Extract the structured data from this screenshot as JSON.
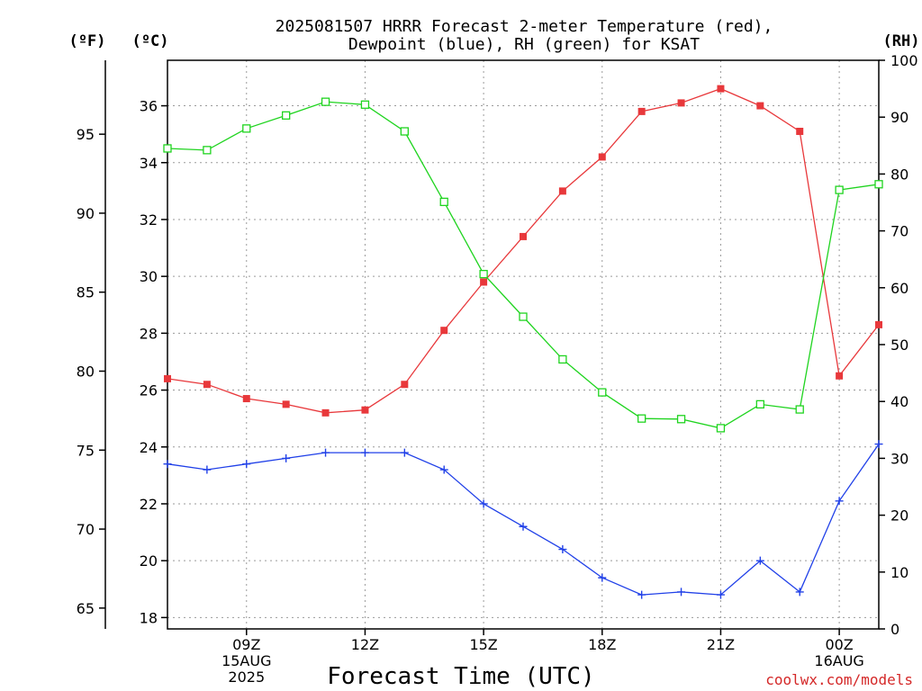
{
  "chart_data": {
    "type": "line",
    "title_line1": "2025081507 HRRR Forecast 2-meter Temperature (red),",
    "title_line2": "Dewpoint (blue), RH (green) for KSAT",
    "xlabel": "Forecast Time (UTC)",
    "credit": "coolwx.com/models",
    "axes": {
      "fahrenheit": {
        "unit_label": "(ºF)",
        "ticks": [
          65,
          70,
          75,
          80,
          85,
          90,
          95
        ]
      },
      "celsius": {
        "unit_label": "(ºC)",
        "range": [
          17.6,
          37.6
        ],
        "ticks": [
          18,
          20,
          22,
          24,
          26,
          28,
          30,
          32,
          34,
          36
        ]
      },
      "rh": {
        "unit_label": "(RH)",
        "range": [
          0,
          100
        ],
        "ticks": [
          0,
          10,
          20,
          30,
          40,
          50,
          60,
          70,
          80,
          90,
          100
        ]
      }
    },
    "x_hours": [
      7,
      8,
      9,
      10,
      11,
      12,
      13,
      14,
      15,
      16,
      17,
      18,
      19,
      20,
      21,
      22,
      23,
      24,
      25
    ],
    "x_range": [
      7,
      25
    ],
    "x_ticks": [
      {
        "hour": 9,
        "lines": [
          "09Z",
          "15AUG",
          "2025"
        ]
      },
      {
        "hour": 12,
        "lines": [
          "12Z"
        ]
      },
      {
        "hour": 15,
        "lines": [
          "15Z"
        ]
      },
      {
        "hour": 18,
        "lines": [
          "18Z"
        ]
      },
      {
        "hour": 21,
        "lines": [
          "21Z"
        ]
      },
      {
        "hour": 24,
        "lines": [
          "00Z",
          "16AUG"
        ]
      }
    ],
    "grid": true,
    "series": [
      {
        "name": "Temperature",
        "axis": "celsius",
        "color": "#e8383b",
        "marker": "filled-square",
        "values": [
          26.4,
          26.2,
          25.7,
          25.5,
          25.2,
          25.3,
          26.2,
          28.1,
          29.8,
          31.4,
          33.0,
          34.2,
          35.8,
          36.1,
          36.6,
          36.0,
          35.1,
          26.5,
          28.3
        ]
      },
      {
        "name": "Dewpoint",
        "axis": "celsius",
        "color": "#2040e8",
        "marker": "plus",
        "values": [
          23.4,
          23.2,
          23.4,
          23.6,
          23.8,
          23.8,
          23.8,
          23.2,
          22.0,
          21.2,
          20.4,
          19.4,
          18.8,
          18.9,
          18.8,
          20.0,
          18.9,
          22.1,
          24.1
        ]
      },
      {
        "name": "RH",
        "axis": "rh",
        "color": "#1fd41f",
        "marker": "open-square",
        "values": [
          84.5,
          84.2,
          88.0,
          90.3,
          92.7,
          92.2,
          87.5,
          75.1,
          62.4,
          54.9,
          47.4,
          41.6,
          37.0,
          36.9,
          35.3,
          39.5,
          38.6,
          77.2,
          78.2
        ]
      }
    ]
  }
}
